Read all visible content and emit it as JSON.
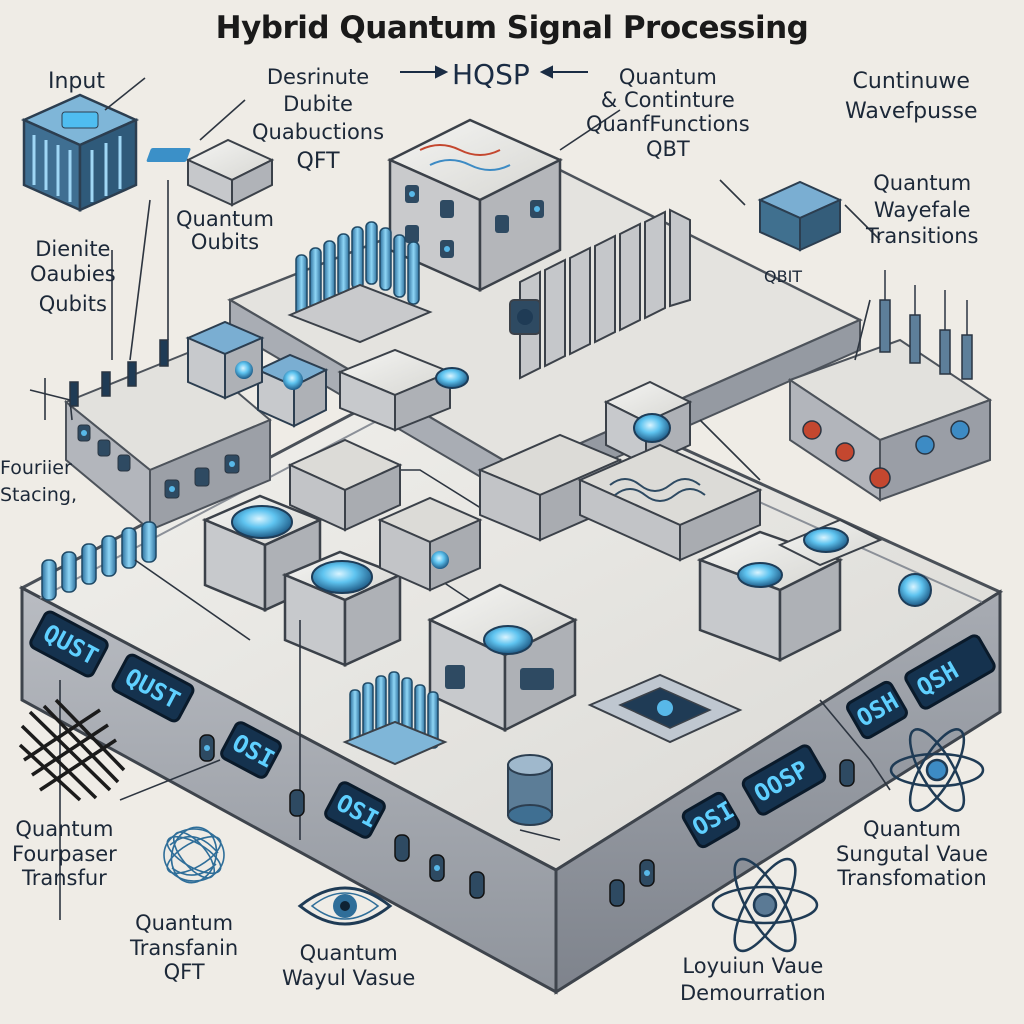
{
  "title": "Hybrid Quantum Signal Processing",
  "center_label": "HQSP",
  "labels": {
    "input": "Input",
    "discrete_qft": [
      "Desrinute",
      "Dubite",
      "Quabuctions",
      "QFT"
    ],
    "quantum_continuous": [
      "Quantum",
      "& Continture",
      "QuanfFunctions",
      "QBT"
    ],
    "continuwe": [
      "Cuntinuwe",
      "Wavefpusse"
    ],
    "wavefale": [
      "Quantum",
      "Wayefale",
      "Transitions"
    ],
    "quantum_oubits": [
      "Quantum",
      "Oubits"
    ],
    "dienite": [
      "Dienite",
      "Oaubies",
      "Qubits"
    ],
    "qbit_small": "QBIT",
    "fourier_stacking": [
      "Fouriier",
      "Stacing,"
    ],
    "qft_fourpaser": [
      "Quantum",
      "Fourpaser",
      "Transfur"
    ],
    "transfanin": [
      "Quantum",
      "Transfanin",
      "QFT"
    ],
    "wayul": [
      "Quantum",
      "Wayul Vasue"
    ],
    "sungutal": [
      "Quantum",
      "Sungutal Vaue",
      "Transfomation"
    ],
    "loyuiun": [
      "Loyuiun Vaue",
      "Demourration"
    ]
  },
  "panel_screens": [
    "QUST",
    "QUST",
    "OSI",
    "OSI",
    "OOSP",
    "OSI",
    "QSH",
    "OSH"
  ],
  "colors": {
    "background": "#efece6",
    "platform_top": "#e9e7e2",
    "platform_side": "#a7aab0",
    "screen": "#15324e",
    "accent": "#58b8e8",
    "red_knob": "#c4472f"
  },
  "icons": [
    "grid-mesh-icon",
    "tangle-sphere-icon",
    "eye-icon",
    "atom-icon",
    "atom-icon"
  ]
}
